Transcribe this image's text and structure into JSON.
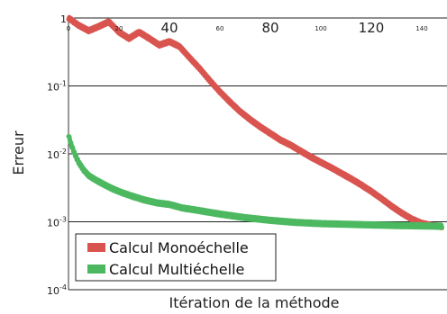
{
  "chart_data": {
    "type": "line",
    "title": "",
    "xlabel": "Itération de la méthode",
    "ylabel": "Erreur",
    "xlim": [
      0,
      150
    ],
    "ylim": [
      0.0001,
      1
    ],
    "y_scale": "log",
    "grid": "horizontal",
    "legend_position": "bottom-left",
    "x_ticks": [
      {
        "value": 0,
        "label": "0",
        "size": "small"
      },
      {
        "value": 20,
        "label": "20",
        "size": "small"
      },
      {
        "value": 40,
        "label": "40",
        "size": "large"
      },
      {
        "value": 60,
        "label": "60",
        "size": "small"
      },
      {
        "value": 80,
        "label": "80",
        "size": "large"
      },
      {
        "value": 100,
        "label": "100",
        "size": "small"
      },
      {
        "value": 120,
        "label": "120",
        "size": "large"
      },
      {
        "value": 140,
        "label": "140",
        "size": "small"
      }
    ],
    "y_ticks": [
      {
        "value": 1,
        "base": "1",
        "exp": ""
      },
      {
        "value": 0.1,
        "base": "10",
        "exp": "-1"
      },
      {
        "value": 0.01,
        "base": "10",
        "exp": "-2"
      },
      {
        "value": 0.001,
        "base": "10",
        "exp": "-3"
      },
      {
        "value": 0.0001,
        "base": "10",
        "exp": "-4"
      }
    ],
    "series": [
      {
        "name": "Calcul Monoéchelle",
        "color": "#d9534f",
        "x": [
          0,
          4,
          8,
          12,
          16,
          20,
          24,
          28,
          32,
          36,
          40,
          44,
          48,
          52,
          56,
          60,
          64,
          68,
          72,
          76,
          80,
          84,
          88,
          92,
          96,
          100,
          104,
          108,
          112,
          116,
          120,
          124,
          128,
          132,
          136,
          140,
          144,
          148
        ],
        "y": [
          1,
          0.78,
          0.65,
          0.75,
          0.88,
          0.62,
          0.5,
          0.62,
          0.5,
          0.4,
          0.45,
          0.38,
          0.26,
          0.18,
          0.12,
          0.082,
          0.058,
          0.042,
          0.032,
          0.025,
          0.02,
          0.016,
          0.0135,
          0.011,
          0.009,
          0.0075,
          0.0063,
          0.0052,
          0.0043,
          0.0035,
          0.0028,
          0.0022,
          0.0017,
          0.00135,
          0.0011,
          0.00095,
          0.00088,
          0.00085
        ]
      },
      {
        "name": "Calcul Multiéchelle",
        "color": "#4cb860",
        "x": [
          0,
          1,
          2,
          3,
          4,
          6,
          8,
          10,
          12,
          15,
          18,
          21,
          25,
          30,
          35,
          40,
          45,
          50,
          60,
          70,
          80,
          90,
          100,
          110,
          120,
          130,
          140,
          148
        ],
        "y": [
          0.019,
          0.014,
          0.011,
          0.009,
          0.0075,
          0.0058,
          0.0048,
          0.0043,
          0.0039,
          0.0034,
          0.003,
          0.0027,
          0.0024,
          0.0021,
          0.0019,
          0.0018,
          0.0016,
          0.0015,
          0.0013,
          0.00115,
          0.00105,
          0.00098,
          0.00094,
          0.00092,
          0.0009,
          0.00088,
          0.00087,
          0.00086
        ]
      }
    ]
  }
}
